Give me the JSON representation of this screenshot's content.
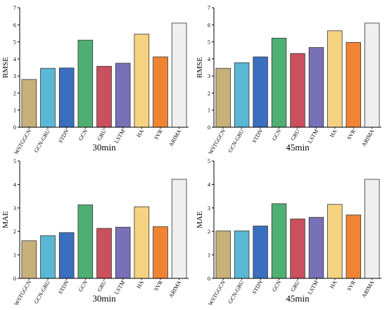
{
  "chart_data": [
    {
      "type": "bar",
      "categories": [
        "WSTGGCN",
        "GCN-GRU",
        "STDN",
        "GCN",
        "GRU",
        "LSTM",
        "HA",
        "SVR",
        "ARIMA"
      ],
      "values": [
        2.8,
        3.45,
        3.47,
        5.1,
        3.57,
        3.75,
        5.45,
        4.12,
        6.1
      ],
      "title": "",
      "xlabel": "30min",
      "ylabel": "RMSE",
      "ylim": [
        0,
        7
      ],
      "yticks": [
        0,
        1,
        2,
        3,
        4,
        5,
        6,
        7
      ],
      "grid": false,
      "legend": "none"
    },
    {
      "type": "bar",
      "categories": [
        "WSTGGCN",
        "GCN-GRU",
        "STDN",
        "GCN",
        "GRU",
        "LSTM",
        "HA",
        "SVR",
        "ARIMA"
      ],
      "values": [
        3.45,
        3.78,
        4.12,
        5.22,
        4.32,
        4.67,
        5.65,
        4.97,
        6.1
      ],
      "title": "",
      "xlabel": "45min",
      "ylabel": "RMSE",
      "ylim": [
        0,
        7
      ],
      "yticks": [
        0,
        1,
        2,
        3,
        4,
        5,
        6,
        7
      ],
      "grid": false,
      "legend": "none"
    },
    {
      "type": "bar",
      "categories": [
        "WSTGGCN",
        "GCN-GRU",
        "STDN",
        "GCN",
        "GRU",
        "LSTM",
        "HA",
        "SVR",
        "ARIMA"
      ],
      "values": [
        1.6,
        1.82,
        1.95,
        3.13,
        2.13,
        2.18,
        3.05,
        2.2,
        4.22
      ],
      "title": "",
      "xlabel": "30min",
      "ylabel": "MAE",
      "ylim": [
        0,
        5
      ],
      "yticks": [
        0,
        1,
        2,
        3,
        4,
        5
      ],
      "grid": false,
      "legend": "none"
    },
    {
      "type": "bar",
      "categories": [
        "WSTGGCN",
        "GCN-GRU",
        "STDN",
        "GCN",
        "GRU",
        "LSTM",
        "HA",
        "SVR",
        "ARIMA"
      ],
      "values": [
        2.02,
        2.02,
        2.23,
        3.18,
        2.53,
        2.6,
        3.15,
        2.7,
        4.22
      ],
      "title": "",
      "xlabel": "45min",
      "ylabel": "MAE",
      "ylim": [
        0,
        5
      ],
      "yticks": [
        0,
        1,
        2,
        3,
        4,
        5
      ],
      "grid": false,
      "legend": "none"
    }
  ],
  "colors": [
    "#c8b07a",
    "#5ab8d6",
    "#3a6fbf",
    "#4faf73",
    "#c9505c",
    "#7871b8",
    "#f6d381",
    "#f08433",
    "#efefef"
  ]
}
